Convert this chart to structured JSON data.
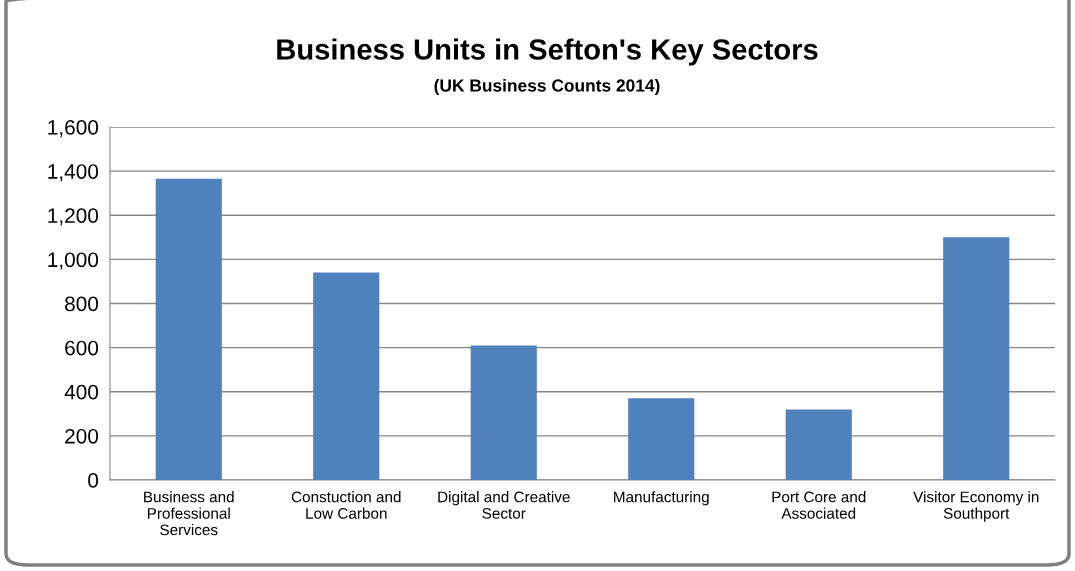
{
  "chart_data": {
    "type": "bar",
    "title": "Business Units in Sefton's Key Sectors",
    "subtitle": "(UK Business Counts 2014)",
    "categories": [
      "Business and\nProfessional\nServices",
      "Constuction and\nLow Carbon",
      "Digital and Creative\nSector",
      "Manufacturing",
      "Port Core and\nAssociated",
      "Visitor Economy in\nSouthport"
    ],
    "values": [
      1365,
      940,
      610,
      370,
      320,
      1100
    ],
    "color": "#4f81bd",
    "ylim": [
      0,
      1600
    ],
    "yticks": [
      {
        "value": 0,
        "label": "0"
      },
      {
        "value": 200,
        "label": "200"
      },
      {
        "value": 400,
        "label": "400"
      },
      {
        "value": 600,
        "label": "600"
      },
      {
        "value": 800,
        "label": "800"
      },
      {
        "value": 1000,
        "label": "1,000"
      },
      {
        "value": 1200,
        "label": "1,200"
      },
      {
        "value": 1400,
        "label": "1,400"
      },
      {
        "value": 1600,
        "label": "1,600"
      }
    ],
    "grid": "y",
    "legend": false
  }
}
